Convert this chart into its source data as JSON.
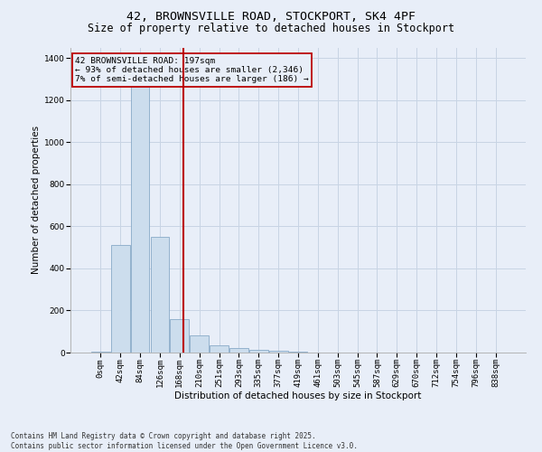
{
  "title1": "42, BROWNSVILLE ROAD, STOCKPORT, SK4 4PF",
  "title2": "Size of property relative to detached houses in Stockport",
  "xlabel": "Distribution of detached houses by size in Stockport",
  "ylabel": "Number of detached properties",
  "footnote": "Contains HM Land Registry data © Crown copyright and database right 2025.\nContains public sector information licensed under the Open Government Licence v3.0.",
  "bar_labels": [
    "0sqm",
    "42sqm",
    "84sqm",
    "126sqm",
    "168sqm",
    "210sqm",
    "251sqm",
    "293sqm",
    "335sqm",
    "377sqm",
    "419sqm",
    "461sqm",
    "503sqm",
    "545sqm",
    "587sqm",
    "629sqm",
    "670sqm",
    "712sqm",
    "754sqm",
    "796sqm",
    "838sqm"
  ],
  "bar_values": [
    3,
    510,
    1300,
    550,
    160,
    80,
    35,
    20,
    15,
    7,
    3,
    1,
    1,
    1,
    0,
    0,
    0,
    0,
    0,
    0,
    0
  ],
  "bar_color": "#ccdded",
  "bar_edge_color": "#88aac8",
  "grid_color": "#c8d4e4",
  "background_color": "#e8eef8",
  "property_line_color": "#bb0000",
  "annotation_text": "42 BROWNSVILLE ROAD: 197sqm\n← 93% of detached houses are smaller (2,346)\n7% of semi-detached houses are larger (186) →",
  "annotation_box_color": "#bb0000",
  "ylim": [
    0,
    1450
  ],
  "yticks": [
    0,
    200,
    400,
    600,
    800,
    1000,
    1200,
    1400
  ],
  "title1_fontsize": 9.5,
  "title2_fontsize": 8.5,
  "xlabel_fontsize": 7.5,
  "ylabel_fontsize": 7.5,
  "tick_fontsize": 6.5,
  "annot_fontsize": 6.8,
  "footnote_fontsize": 5.5
}
